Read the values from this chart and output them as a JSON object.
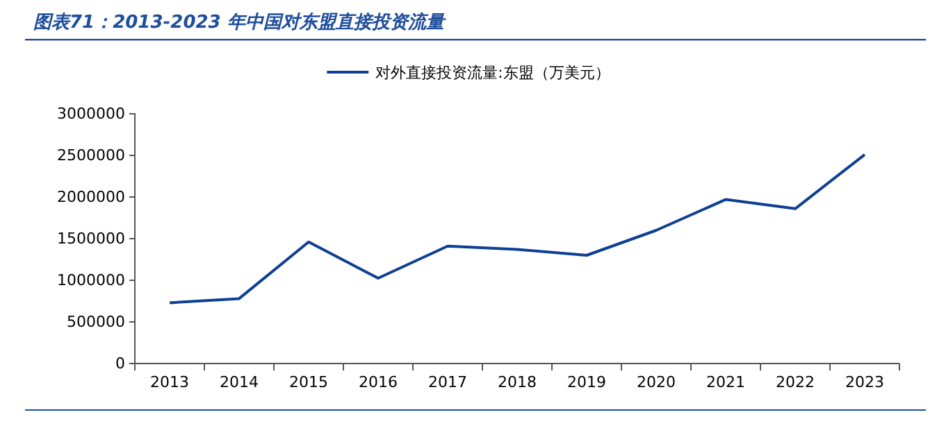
{
  "chart_data": {
    "type": "line",
    "title": "图表71：2013-2023 年中国对东盟直接投资流量",
    "categories": [
      "2013",
      "2014",
      "2015",
      "2016",
      "2017",
      "2018",
      "2019",
      "2020",
      "2021",
      "2022",
      "2023"
    ],
    "series": [
      {
        "name": "对外直接投资流量:东盟（万美元）",
        "color": "#0e3f95",
        "values": [
          730000,
          780000,
          1460000,
          1025000,
          1410000,
          1370000,
          1300000,
          1600000,
          1970000,
          1860000,
          2510000
        ]
      }
    ],
    "ylim": [
      0,
      3000000
    ],
    "yticks": [
      0,
      500000,
      1000000,
      1500000,
      2000000,
      2500000,
      3000000
    ],
    "grid": false,
    "legend": "top",
    "marker": "none",
    "line_style": "solid"
  }
}
